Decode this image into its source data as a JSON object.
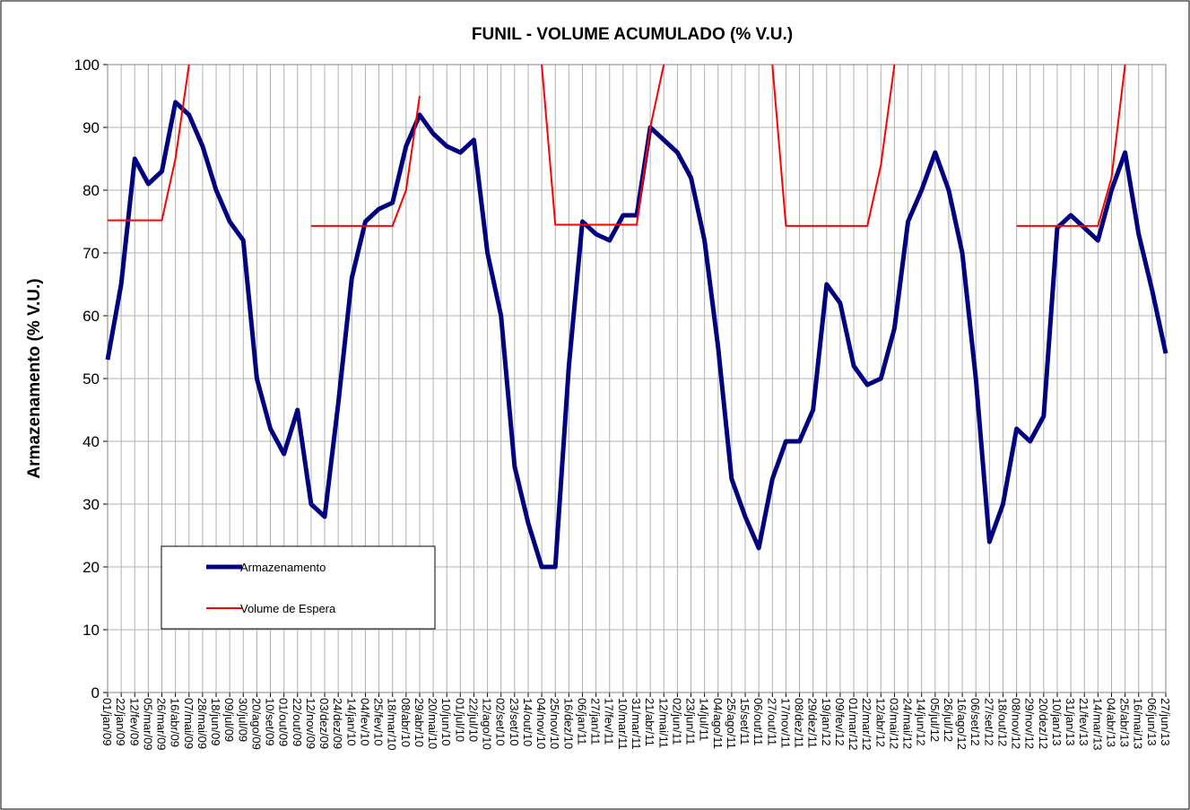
{
  "chart_data": {
    "type": "line",
    "title": "FUNIL - VOLUME ACUMULADO (% V.U.)",
    "y_label": "Armazenamento (% V.U.)",
    "categories": [
      "01/jan/09",
      "22/jan/09",
      "12/fev/09",
      "05/mar/09",
      "26/mar/09",
      "16/abr/09",
      "07/mai/09",
      "28/mai/09",
      "18/jun/09",
      "09/jul/09",
      "30/jul/09",
      "20/ago/09",
      "10/set/09",
      "01/out/09",
      "22/out/09",
      "12/nov/09",
      "03/dez/09",
      "24/dez/09",
      "14/jan/10",
      "04/fev/10",
      "25/fev/10",
      "18/mar/10",
      "08/abr/10",
      "29/abr/10",
      "20/mai/10",
      "10/jun/10",
      "01/jul/10",
      "22/jul/10",
      "12/ago/10",
      "02/set/10",
      "23/set/10",
      "14/out/10",
      "04/nov/10",
      "25/nov/10",
      "16/dez/10",
      "06/jan/11",
      "27/jan/11",
      "17/fev/11",
      "10/mar/11",
      "31/mar/11",
      "21/abr/11",
      "12/mai/11",
      "02/jun/11",
      "23/jun/11",
      "14/jul/11",
      "04/ago/11",
      "25/ago/11",
      "15/set/11",
      "06/out/11",
      "27/out/11",
      "17/nov/11",
      "08/dez/11",
      "29/dez/11",
      "19/jan/12",
      "09/fev/12",
      "01/mar/12",
      "22/mar/12",
      "12/abr/12",
      "03/mai/12",
      "24/mai/12",
      "14/jun/12",
      "05/jul/12",
      "26/jul/12",
      "16/ago/12",
      "06/set/12",
      "27/set/12",
      "18/out/12",
      "08/nov/12",
      "29/nov/12",
      "20/dez/12",
      "10/jan/13",
      "31/jan/13",
      "21/fev/13",
      "14/mar/13",
      "04/abr/13",
      "25/abr/13",
      "16/mai/13",
      "06/jun/13",
      "27/jun/13"
    ],
    "series": [
      {
        "name": "Armazenamento",
        "color": "#000080",
        "width": 5,
        "values": [
          53,
          65,
          85,
          81,
          83,
          94,
          92,
          87,
          80,
          75,
          72,
          50,
          42,
          38,
          45,
          30,
          28,
          46,
          66,
          75,
          77,
          78,
          87,
          92,
          89,
          87,
          86,
          88,
          70,
          60,
          36,
          27,
          20,
          20,
          52,
          75,
          73,
          72,
          76,
          76,
          90,
          88,
          86,
          82,
          72,
          55,
          34,
          28,
          23,
          34,
          40,
          40,
          45,
          65,
          62,
          52,
          49,
          50,
          58,
          75,
          80,
          86,
          80,
          70,
          50,
          24,
          30,
          42,
          40,
          44,
          74,
          76,
          74,
          72,
          80,
          86,
          73,
          64,
          54
        ]
      },
      {
        "name": "Volume de Espera",
        "color": "#ff0000",
        "width": 2,
        "values": [
          75.2,
          75.2,
          75.2,
          75.2,
          75.2,
          85,
          100,
          null,
          null,
          null,
          null,
          null,
          null,
          null,
          null,
          74.3,
          74.3,
          74.3,
          74.3,
          74.3,
          74.3,
          74.3,
          80,
          95,
          null,
          null,
          null,
          null,
          null,
          null,
          null,
          null,
          100,
          74.5,
          74.5,
          74.5,
          74.5,
          74.5,
          74.5,
          74.5,
          90,
          100,
          null,
          null,
          null,
          null,
          null,
          null,
          null,
          100,
          74.3,
          74.3,
          74.3,
          74.3,
          74.3,
          74.3,
          74.3,
          84,
          100,
          null,
          null,
          null,
          null,
          null,
          null,
          null,
          null,
          74.3,
          74.3,
          74.3,
          74.3,
          74.3,
          74.3,
          74.3,
          82,
          100,
          null,
          null,
          null
        ]
      }
    ],
    "ylim": [
      0,
      100
    ],
    "yticks": [
      0,
      10,
      20,
      30,
      40,
      50,
      60,
      70,
      80,
      90,
      100
    ],
    "grid": true
  }
}
